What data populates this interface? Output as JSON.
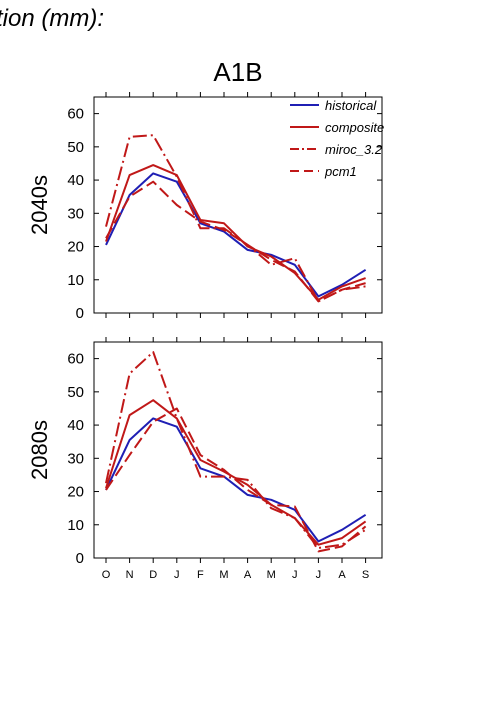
{
  "figure": {
    "title": "tion (mm):",
    "scenario": "A1B",
    "colors": {
      "historical": "#1f1fb4",
      "model": "#c01818"
    }
  },
  "chart_data": [
    {
      "type": "line",
      "title": "A1B",
      "ylabel": "2040s",
      "xlabel": "",
      "categories": [
        "O",
        "N",
        "D",
        "J",
        "F",
        "M",
        "A",
        "M",
        "J",
        "J",
        "A",
        "S"
      ],
      "ylim": [
        0,
        65
      ],
      "yticks": [
        0,
        10,
        20,
        30,
        40,
        50,
        60
      ],
      "grid": false,
      "legend": "top-right",
      "series": [
        {
          "name": "historical",
          "style": "solid",
          "color": "#1f1fb4",
          "values": [
            20.5,
            35.5,
            42,
            39.5,
            27,
            24.5,
            19,
            17.5,
            14.5,
            5,
            8.5,
            13
          ]
        },
        {
          "name": "composite",
          "style": "solid",
          "color": "#c01818",
          "values": [
            21.5,
            41.5,
            44.5,
            41.5,
            28,
            27,
            20,
            17,
            12,
            4,
            8,
            10.5
          ]
        },
        {
          "name": "miroc_3.2",
          "style": "dashdot",
          "color": "#c01818",
          "values": [
            26,
            53,
            53.5,
            41,
            25.5,
            25.5,
            20.5,
            14.5,
            16.5,
            3.5,
            7,
            8
          ]
        },
        {
          "name": "pcm1",
          "style": "dashed",
          "color": "#c01818",
          "values": [
            22.5,
            35,
            39.5,
            32.5,
            27.5,
            25,
            20.5,
            16,
            12.5,
            3.5,
            7,
            9
          ]
        }
      ]
    },
    {
      "type": "line",
      "title": "",
      "ylabel": "2080s",
      "xlabel": "",
      "categories": [
        "O",
        "N",
        "D",
        "J",
        "F",
        "M",
        "A",
        "M",
        "J",
        "J",
        "A",
        "S"
      ],
      "ylim": [
        0,
        65
      ],
      "yticks": [
        0,
        10,
        20,
        30,
        40,
        50,
        60
      ],
      "grid": false,
      "series": [
        {
          "name": "historical",
          "style": "solid",
          "color": "#1f1fb4",
          "values": [
            20.5,
            35.5,
            42,
            39.5,
            27,
            24.5,
            19,
            17.5,
            14.5,
            5,
            8.5,
            13
          ]
        },
        {
          "name": "composite",
          "style": "solid",
          "color": "#c01818",
          "values": [
            21,
            43,
            47.5,
            42,
            29.5,
            26,
            22,
            16,
            12,
            4,
            6,
            11
          ]
        },
        {
          "name": "miroc_3.2",
          "style": "dashdot",
          "color": "#c01818",
          "values": [
            22.5,
            55.5,
            62,
            42,
            24.5,
            24.5,
            23.5,
            15,
            12,
            3,
            4,
            8.5
          ]
        },
        {
          "name": "pcm1",
          "style": "dashed",
          "color": "#c01818",
          "values": [
            20.5,
            31,
            41,
            45,
            31,
            26.5,
            20.5,
            16,
            15.5,
            2,
            3.5,
            9.5
          ]
        }
      ]
    }
  ]
}
